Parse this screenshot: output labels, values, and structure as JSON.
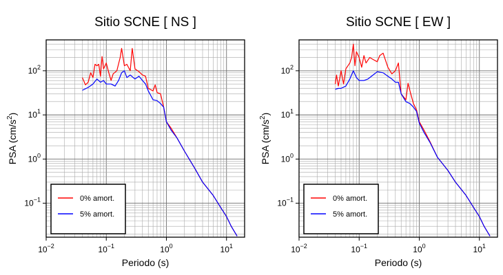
{
  "chart_data": [
    {
      "type": "line",
      "title": "Sitio SCNE [ NS ]",
      "xlabel": "Periodo (s)",
      "ylabel_main": "PSA (cm/s",
      "ylabel_sup": "2",
      "ylabel_end": ")",
      "xscale": "log",
      "yscale": "log",
      "xlim": [
        0.01,
        20
      ],
      "ylim": [
        0.017,
        500
      ],
      "x_ticks": [
        {
          "base": "10",
          "exp": "−2"
        },
        {
          "base": "10",
          "exp": "−1"
        },
        {
          "base": "10",
          "exp": "0"
        },
        {
          "base": "10",
          "exp": "1"
        }
      ],
      "y_ticks": [
        {
          "base": "10",
          "exp": "−1"
        },
        {
          "base": "10",
          "exp": "0"
        },
        {
          "base": "10",
          "exp": "1"
        },
        {
          "base": "10",
          "exp": "2"
        }
      ],
      "grid": true,
      "legend_position": "bottom-left",
      "series": [
        {
          "name": "0% amort.",
          "color": "#ff0000",
          "points": [
            [
              0.04,
              70
            ],
            [
              0.045,
              48
            ],
            [
              0.05,
              55
            ],
            [
              0.055,
              90
            ],
            [
              0.06,
              70
            ],
            [
              0.065,
              140
            ],
            [
              0.07,
              130
            ],
            [
              0.075,
              140
            ],
            [
              0.08,
              75
            ],
            [
              0.085,
              210
            ],
            [
              0.09,
              110
            ],
            [
              0.1,
              150
            ],
            [
              0.11,
              90
            ],
            [
              0.12,
              60
            ],
            [
              0.13,
              85
            ],
            [
              0.15,
              100
            ],
            [
              0.17,
              200
            ],
            [
              0.18,
              320
            ],
            [
              0.2,
              130
            ],
            [
              0.22,
              140
            ],
            [
              0.25,
              100
            ],
            [
              0.27,
              320
            ],
            [
              0.3,
              110
            ],
            [
              0.35,
              95
            ],
            [
              0.4,
              80
            ],
            [
              0.45,
              75
            ],
            [
              0.5,
              40
            ],
            [
              0.6,
              35
            ],
            [
              0.65,
              48
            ],
            [
              0.7,
              32
            ],
            [
              0.8,
              30
            ],
            [
              0.9,
              15
            ],
            [
              1.0,
              7
            ],
            [
              1.2,
              5
            ],
            [
              1.5,
              3
            ],
            [
              2,
              1.5
            ],
            [
              3,
              0.6
            ],
            [
              4,
              0.3
            ],
            [
              6,
              0.15
            ],
            [
              8,
              0.08
            ],
            [
              10,
              0.05
            ],
            [
              12,
              0.03
            ],
            [
              15,
              0.018
            ]
          ]
        },
        {
          "name": "5% amort.",
          "color": "#0000ff",
          "points": [
            [
              0.04,
              36
            ],
            [
              0.05,
              42
            ],
            [
              0.06,
              50
            ],
            [
              0.07,
              65
            ],
            [
              0.08,
              55
            ],
            [
              0.09,
              60
            ],
            [
              0.1,
              50
            ],
            [
              0.12,
              50
            ],
            [
              0.14,
              45
            ],
            [
              0.16,
              60
            ],
            [
              0.18,
              90
            ],
            [
              0.2,
              100
            ],
            [
              0.22,
              70
            ],
            [
              0.25,
              80
            ],
            [
              0.3,
              65
            ],
            [
              0.35,
              75
            ],
            [
              0.4,
              60
            ],
            [
              0.45,
              50
            ],
            [
              0.5,
              35
            ],
            [
              0.6,
              22
            ],
            [
              0.7,
              21
            ],
            [
              0.8,
              18
            ],
            [
              0.9,
              15
            ],
            [
              1.0,
              7
            ],
            [
              1.2,
              4.5
            ],
            [
              1.5,
              3
            ],
            [
              2,
              1.5
            ],
            [
              3,
              0.6
            ],
            [
              4,
              0.3
            ],
            [
              6,
              0.15
            ],
            [
              8,
              0.08
            ],
            [
              10,
              0.05
            ],
            [
              12,
              0.03
            ],
            [
              15,
              0.018
            ]
          ]
        }
      ]
    },
    {
      "type": "line",
      "title": "Sitio SCNE [ EW ]",
      "xlabel": "Periodo (s)",
      "ylabel_main": "PSA (cm/s",
      "ylabel_sup": "2",
      "ylabel_end": ")",
      "xscale": "log",
      "yscale": "log",
      "xlim": [
        0.01,
        20
      ],
      "ylim": [
        0.017,
        500
      ],
      "x_ticks": [
        {
          "base": "10",
          "exp": "−2"
        },
        {
          "base": "10",
          "exp": "−1"
        },
        {
          "base": "10",
          "exp": "0"
        },
        {
          "base": "10",
          "exp": "1"
        }
      ],
      "y_ticks": [
        {
          "base": "10",
          "exp": "−1"
        },
        {
          "base": "10",
          "exp": "0"
        },
        {
          "base": "10",
          "exp": "1"
        },
        {
          "base": "10",
          "exp": "2"
        }
      ],
      "grid": true,
      "legend_position": "bottom-left",
      "series": [
        {
          "name": "0% amort.",
          "color": "#ff0000",
          "points": [
            [
              0.04,
              50
            ],
            [
              0.042,
              80
            ],
            [
              0.045,
              45
            ],
            [
              0.05,
              100
            ],
            [
              0.055,
              50
            ],
            [
              0.06,
              110
            ],
            [
              0.07,
              150
            ],
            [
              0.075,
              200
            ],
            [
              0.08,
              400
            ],
            [
              0.085,
              130
            ],
            [
              0.09,
              270
            ],
            [
              0.1,
              200
            ],
            [
              0.11,
              120
            ],
            [
              0.12,
              220
            ],
            [
              0.13,
              150
            ],
            [
              0.15,
              200
            ],
            [
              0.17,
              180
            ],
            [
              0.2,
              160
            ],
            [
              0.22,
              220
            ],
            [
              0.25,
              250
            ],
            [
              0.3,
              120
            ],
            [
              0.35,
              85
            ],
            [
              0.4,
              100
            ],
            [
              0.45,
              150
            ],
            [
              0.5,
              30
            ],
            [
              0.6,
              22
            ],
            [
              0.65,
              52
            ],
            [
              0.7,
              35
            ],
            [
              0.8,
              18
            ],
            [
              0.9,
              13
            ],
            [
              1.0,
              7
            ],
            [
              1.2,
              4.5
            ],
            [
              1.5,
              2.5
            ],
            [
              2,
              1.1
            ],
            [
              3,
              0.55
            ],
            [
              4,
              0.3
            ],
            [
              6,
              0.15
            ],
            [
              8,
              0.08
            ],
            [
              10,
              0.05
            ],
            [
              12,
              0.03
            ],
            [
              15,
              0.018
            ]
          ]
        },
        {
          "name": "5% amort.",
          "color": "#0000ff",
          "points": [
            [
              0.04,
              38
            ],
            [
              0.045,
              40
            ],
            [
              0.05,
              40
            ],
            [
              0.06,
              45
            ],
            [
              0.07,
              65
            ],
            [
              0.08,
              100
            ],
            [
              0.09,
              70
            ],
            [
              0.1,
              60
            ],
            [
              0.12,
              60
            ],
            [
              0.14,
              65
            ],
            [
              0.17,
              80
            ],
            [
              0.2,
              95
            ],
            [
              0.25,
              90
            ],
            [
              0.3,
              75
            ],
            [
              0.35,
              65
            ],
            [
              0.4,
              55
            ],
            [
              0.45,
              55
            ],
            [
              0.5,
              30
            ],
            [
              0.6,
              20
            ],
            [
              0.7,
              18
            ],
            [
              0.8,
              15
            ],
            [
              0.9,
              12
            ],
            [
              1.0,
              6.5
            ],
            [
              1.2,
              4
            ],
            [
              1.5,
              2.4
            ],
            [
              2,
              1.1
            ],
            [
              3,
              0.55
            ],
            [
              4,
              0.3
            ],
            [
              6,
              0.15
            ],
            [
              8,
              0.08
            ],
            [
              10,
              0.05
            ],
            [
              12,
              0.03
            ],
            [
              15,
              0.018
            ]
          ]
        }
      ]
    }
  ]
}
